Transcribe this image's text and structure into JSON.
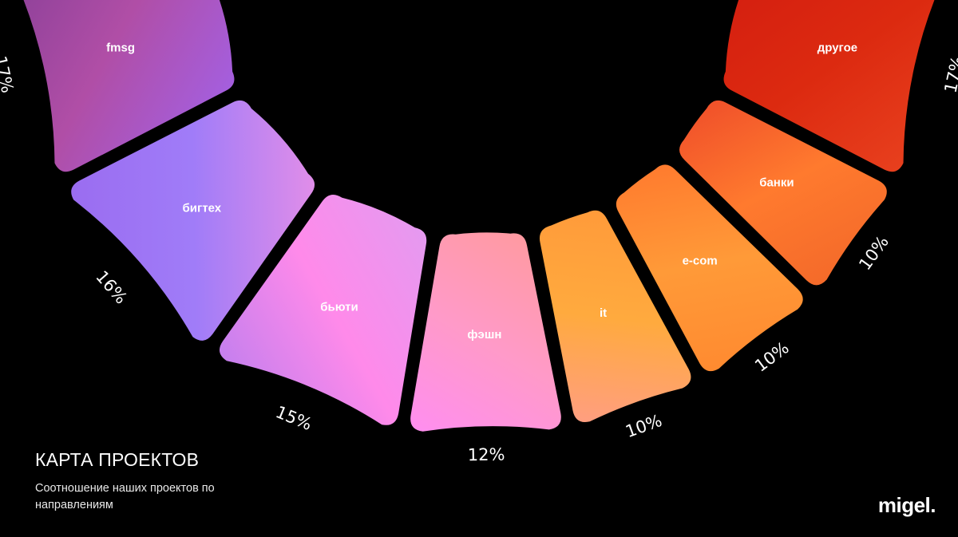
{
  "slide": {
    "title": "КАРТА ПРОЕКТОВ",
    "subtitle": "Соотношение наших проектов по направлениям",
    "logo": "migel."
  },
  "chart_data": {
    "type": "pie",
    "style": "partial donut, segments with gaps, labels inside segments, percentages outside",
    "segments": [
      {
        "label": "fmsg",
        "value": 17,
        "percent_label": "17%",
        "colors": [
          "#8a3f98",
          "#b04ea6",
          "#a45fe0"
        ]
      },
      {
        "label": "бигтех",
        "value": 16,
        "percent_label": "16%",
        "colors": [
          "#9a6cf0",
          "#a07cf8",
          "#e38ee8"
        ]
      },
      {
        "label": "бьюти",
        "value": 15,
        "percent_label": "15%",
        "colors": [
          "#c47fee",
          "#ff8aea",
          "#e49af0"
        ]
      },
      {
        "label": "фэшн",
        "value": 12,
        "percent_label": "12%",
        "colors": [
          "#ff8ef0",
          "#ff9ac8",
          "#ff9aa0"
        ]
      },
      {
        "label": "it",
        "value": 10,
        "percent_label": "10%",
        "colors": [
          "#ff9e82",
          "#ffaa3e",
          "#ff9a3a"
        ]
      },
      {
        "label": "e-com",
        "value": 10,
        "percent_label": "10%",
        "colors": [
          "#ff8a30",
          "#ff9a38",
          "#ff7a2e"
        ]
      },
      {
        "label": "банки",
        "value": 10,
        "percent_label": "10%",
        "colors": [
          "#f46a2a",
          "#ff7a2e",
          "#f0502a"
        ]
      },
      {
        "label": "другое",
        "value": 17,
        "percent_label": "17%",
        "colors": [
          "#e8401e",
          "#dc2a10",
          "#d41e10"
        ]
      }
    ]
  }
}
